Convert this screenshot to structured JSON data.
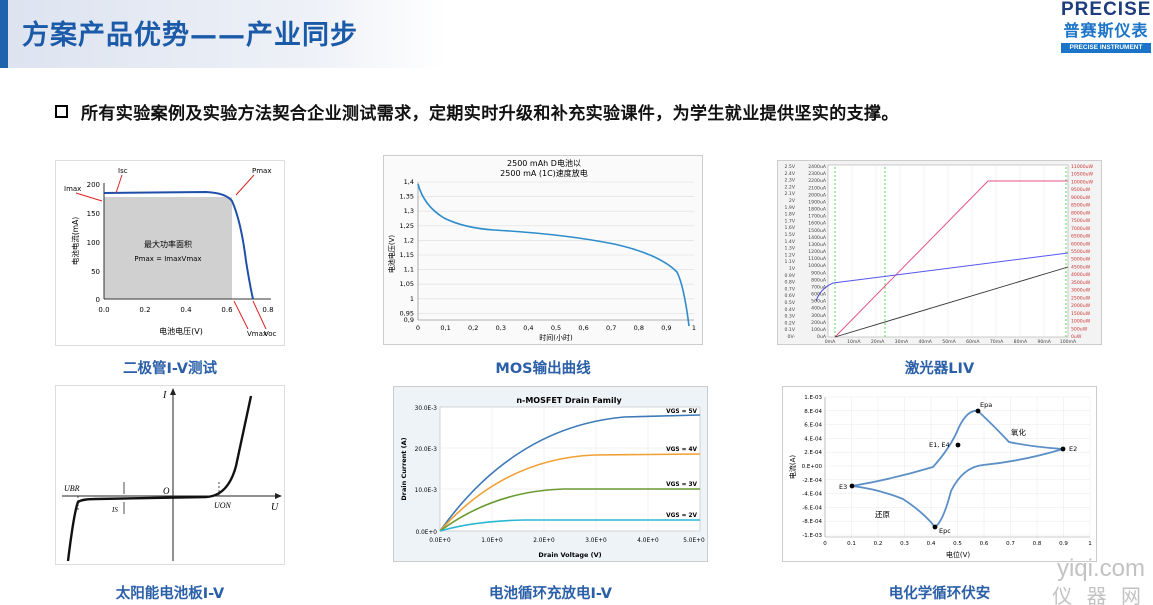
{
  "header": {
    "title": "方案产品优势——产业同步"
  },
  "logo": {
    "en": "PRECISE",
    "cn": "普赛斯仪表",
    "sub": "PRECISE INSTRUMENT"
  },
  "bullet": {
    "text": "所有实验案例及实验方法契合企业测试需求，定期实时升级和补充实验课件，为学生就业提供坚实的支撑。"
  },
  "captions": {
    "diode": "二极管I-V测试",
    "mos": "MOS输出曲线",
    "laser": "激光器LIV",
    "solar": "太阳能电池板I-V",
    "battery": "电池循环充放电I-V",
    "cv": "电化学循环伏安"
  },
  "watermark": {
    "line1": "yiqi.com",
    "line2": "仪 器 网"
  },
  "charts": {
    "diode": {
      "ylabel": "电池电流(mA)",
      "xlabel": "电池电压(V)",
      "yticks": [
        "200",
        "150",
        "100",
        "50",
        "0"
      ],
      "xticks": [
        "0.0",
        "0.2",
        "0.4",
        "0.6",
        "0.8"
      ],
      "area_label": "最大功率面积",
      "area_formula": "Pmax = ImaxVmax",
      "lbl_isc": "Isc",
      "lbl_pmax": "Pmax",
      "lbl_imax": "Imax",
      "lbl_vmax": "Vmax",
      "lbl_voc": "Voc"
    },
    "mos": {
      "title1": "2500 mAh D电池以",
      "title2": "2500 mA (1C)速度放电",
      "ylabel": "电池电压(V)",
      "xlabel": "时间(小时)",
      "yticks": [
        "1,4",
        "1,35",
        "1,3",
        "1,25",
        "1,2",
        "1,15",
        "1,1",
        "1,05",
        "1",
        "0,95",
        "0,9"
      ],
      "xticks": [
        "0",
        "0,1",
        "0,2",
        "0,3",
        "0,4",
        "0,5",
        "0,6",
        "0,7",
        "0,8",
        "0,9",
        "1"
      ]
    },
    "laser": {
      "vticks": [
        "2.5V",
        "2.4V",
        "2.3V",
        "2.2V",
        "2.1V",
        "2V",
        "1.9V",
        "1.8V",
        "1.7V",
        "1.6V",
        "1.5V",
        "1.4V",
        "1.3V",
        "1.2V",
        "1.1V",
        "1V",
        "0.9V",
        "0.8V",
        "0.7V",
        "0.6V",
        "0.5V",
        "0.4V",
        "0.3V",
        "0.2V",
        "0.1V",
        "0V-"
      ],
      "aticks": [
        "2400uA",
        "2300uA",
        "2200uA",
        "2100uA",
        "2000uA",
        "1900uA",
        "1800uA",
        "1700uA",
        "1600uA",
        "1500uA",
        "1400uA",
        "1300uA",
        "1200uA",
        "1100uA",
        "1000uA",
        "900uA",
        "800uA",
        "700uA",
        "600uA",
        "500uA",
        "400uA",
        "300uA",
        "200uA",
        "100uA",
        "0uA"
      ],
      "wticks": [
        "11000uW",
        "10500uW",
        "10000uW",
        "9500uW",
        "9000uW",
        "8500uW",
        "8000uW",
        "7500uW",
        "7000uW",
        "6500uW",
        "6000uW",
        "5500uW",
        "5000uW",
        "4500uW",
        "4000uW",
        "3500uW",
        "3000uW",
        "2500uW",
        "2000uW",
        "1500uW",
        "1000uW",
        "500uW",
        "0uW"
      ],
      "xticks": [
        "0mA",
        "10mA",
        "20mA",
        "30mA",
        "40mA",
        "50mA",
        "60mA",
        "70mA",
        "80mA",
        "90mA",
        "100mA"
      ]
    },
    "solar": {
      "ylabel": "I",
      "xlabel": "U",
      "origin": "O",
      "ubr": "UBR",
      "uon": "UON",
      "is": "IS"
    },
    "battery": {
      "title": "n-MOSFET Drain Family",
      "ylabel": "Drain Current (A)",
      "xlabel": "Drain Voltage (V)",
      "yticks": [
        "30.0E-3",
        "20.0E-3",
        "10.0E-3",
        "0.0E+0"
      ],
      "xticks": [
        "0.0E+0",
        "1.0E+0",
        "2.0E+0",
        "3.0E+0",
        "4.0E+0",
        "5.0E+0"
      ],
      "series": [
        "VGS = 5V",
        "VGS = 4V",
        "VGS = 3V",
        "VGS = 2V"
      ]
    },
    "cv": {
      "ylabel": "电流(A)",
      "xlabel": "电位(V)",
      "yticks": [
        "1.E-03",
        "8.E-04",
        "6.E-04",
        "4.E-04",
        "2.E-04",
        "0.E+00",
        "-2.E-04",
        "-4.E-04",
        "-6.E-04",
        "-8.E-04",
        "-1.E-03"
      ],
      "xticks": [
        "0",
        "0.1",
        "0.2",
        "0.3",
        "0.4",
        "0.5",
        "0.6",
        "0.7",
        "0.8",
        "0.9",
        "1"
      ],
      "epa": "Epa",
      "e1e4": "E1, E4",
      "e2": "E2",
      "e3": "E3",
      "epc": "Epc",
      "ox": "氧化",
      "red": "还原"
    }
  }
}
